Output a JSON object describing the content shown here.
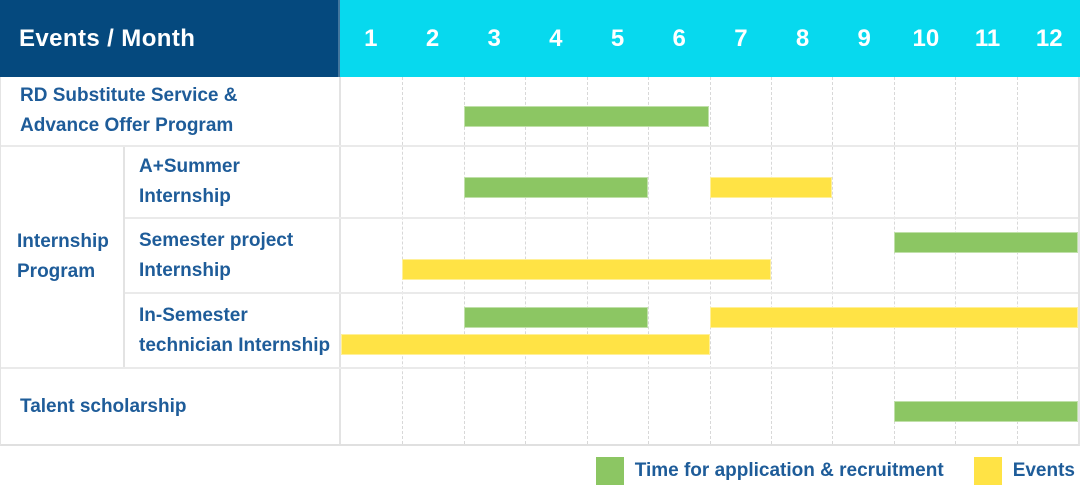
{
  "header": {
    "events_month_label": "Events / Month",
    "months": [
      "1",
      "2",
      "3",
      "4",
      "5",
      "6",
      "7",
      "8",
      "9",
      "10",
      "11",
      "12"
    ]
  },
  "colors": {
    "navy": "#05497E",
    "cyan": "#07D9EE",
    "label_blue": "#1E5C99",
    "green": "#8CC663",
    "yellow": "#FFE345",
    "grid_line": "#D8D8D8"
  },
  "legend": {
    "items": [
      {
        "color_key": "green",
        "label": "Time for application & recruitment"
      },
      {
        "color_key": "yellow",
        "label": "Events"
      }
    ]
  },
  "chart_data": {
    "type": "bar",
    "variant": "gantt-schedule",
    "title": "Events / Month",
    "x_axis": {
      "unit": "month",
      "ticks": [
        "1",
        "2",
        "3",
        "4",
        "5",
        "6",
        "7",
        "8",
        "9",
        "10",
        "11",
        "12"
      ],
      "range": [
        1,
        12
      ],
      "gridlines": "dashed-vertical"
    },
    "legend_position": "bottom-right",
    "series_legend": [
      {
        "name": "Time for application & recruitment",
        "color": "#8CC663"
      },
      {
        "name": "Events",
        "color": "#FFE345"
      }
    ],
    "rows": [
      {
        "group": "",
        "label": "RD Substitute Service &\nAdvance Offer Program",
        "bars": [
          {
            "series": "Time for application & recruitment",
            "color_key": "green",
            "start_month": 3,
            "end_month": 6,
            "level": "single"
          }
        ]
      },
      {
        "group": "Internship\nProgram",
        "label": "A+Summer\nInternship",
        "bars": [
          {
            "series": "Time for application & recruitment",
            "color_key": "green",
            "start_month": 3,
            "end_month": 5,
            "level": "single"
          },
          {
            "series": "Events",
            "color_key": "yellow",
            "start_month": 7,
            "end_month": 8,
            "level": "single"
          }
        ]
      },
      {
        "group": "Internship\nProgram",
        "label": "Semester project\nInternship",
        "bars": [
          {
            "series": "Time for application & recruitment",
            "color_key": "green",
            "start_month": 10,
            "end_month": 12,
            "level": "top"
          },
          {
            "series": "Events",
            "color_key": "yellow",
            "start_month": 2,
            "end_month": 7,
            "level": "bottom"
          }
        ]
      },
      {
        "group": "Internship\nProgram",
        "label": "In-Semester\ntechnician Internship",
        "bars": [
          {
            "series": "Time for application & recruitment",
            "color_key": "green",
            "start_month": 3,
            "end_month": 5,
            "level": "top"
          },
          {
            "series": "Events",
            "color_key": "yellow",
            "start_month": 7,
            "end_month": 12,
            "level": "top"
          },
          {
            "series": "Events",
            "color_key": "yellow",
            "start_month": 1,
            "end_month": 6,
            "level": "bottom"
          }
        ]
      },
      {
        "group": "",
        "label": "Talent scholarship",
        "bars": [
          {
            "series": "Time for application & recruitment",
            "color_key": "green",
            "start_month": 10,
            "end_month": 12,
            "level": "single"
          }
        ]
      }
    ]
  }
}
